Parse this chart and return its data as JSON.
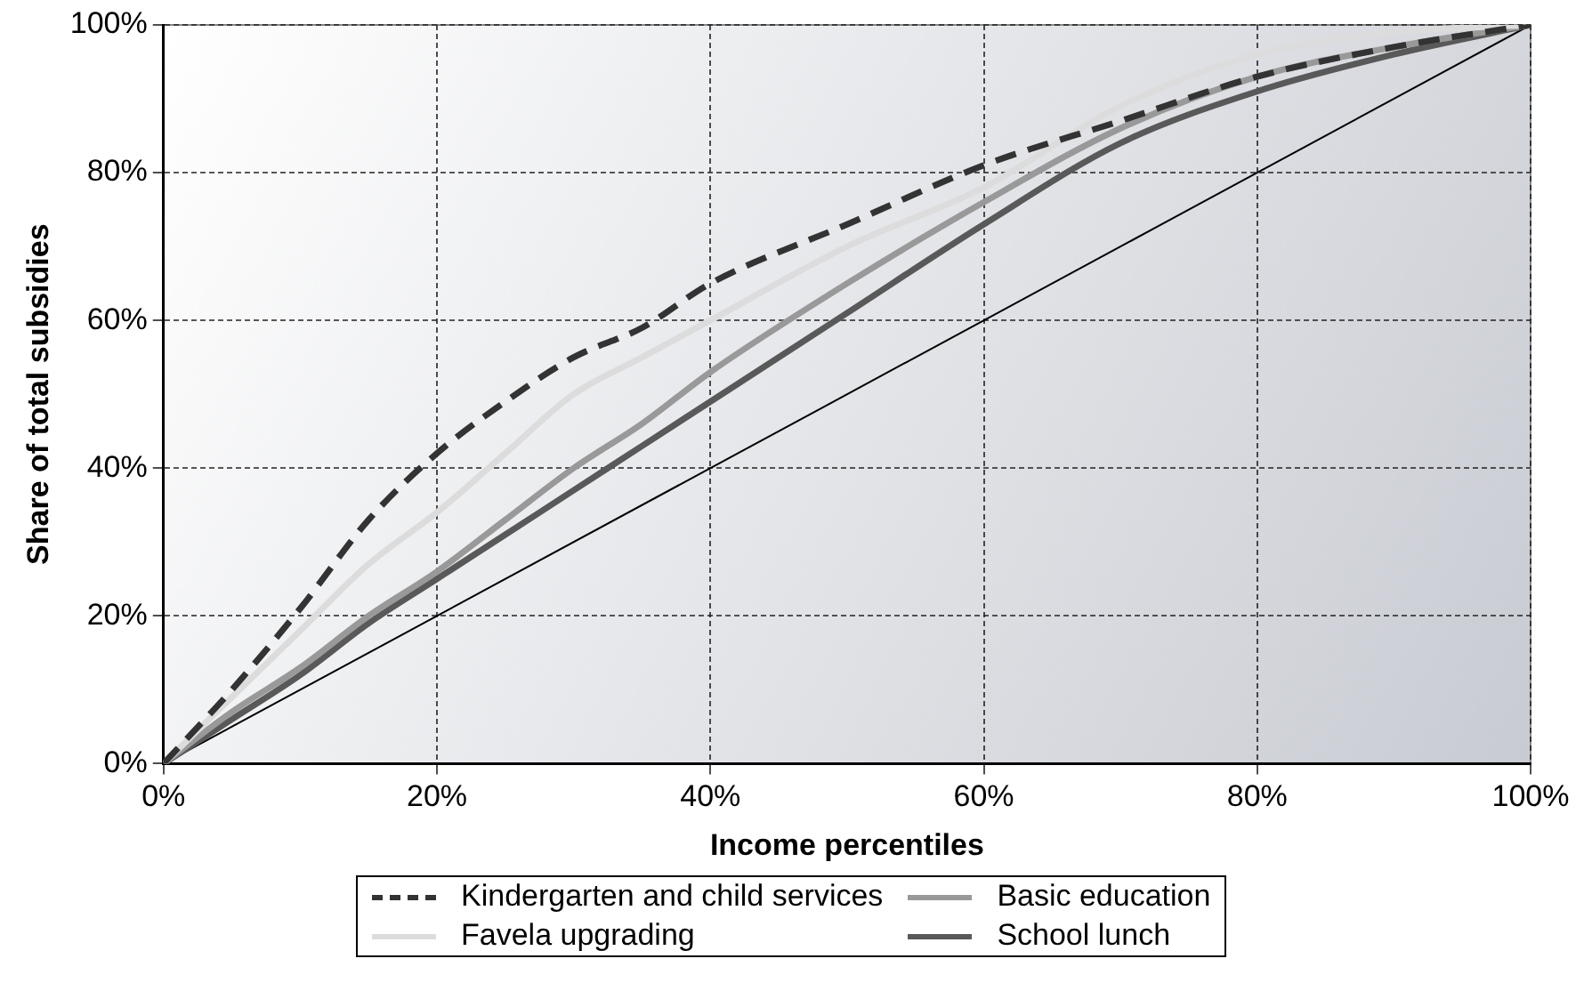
{
  "chart_data": {
    "type": "line",
    "xlabel": "Income percentiles",
    "ylabel": "Share of total subsidies",
    "x": [
      0,
      5,
      10,
      15,
      20,
      25,
      30,
      35,
      40,
      50,
      60,
      70,
      80,
      90,
      100
    ],
    "series": [
      {
        "name": "Kindergarten and child services",
        "color": "#333333",
        "line_style": "dashed",
        "values": [
          0,
          10,
          21,
          33,
          42,
          49,
          55,
          59,
          65,
          73,
          81,
          87,
          93,
          97,
          100
        ]
      },
      {
        "name": "Favela upgrading",
        "color": "#dcdcdc",
        "values": [
          0,
          9,
          18,
          27,
          34,
          42,
          50,
          55,
          60,
          70,
          78,
          89,
          96,
          99,
          100
        ]
      },
      {
        "name": "Basic education",
        "color": "#999999",
        "values": [
          0,
          7,
          13,
          20,
          26,
          33,
          40,
          46,
          53,
          65,
          76,
          86,
          93,
          97,
          100
        ]
      },
      {
        "name": "School lunch",
        "color": "#595959",
        "values": [
          0,
          6,
          12,
          19,
          25,
          31,
          37,
          43,
          49,
          61,
          73,
          84,
          91,
          96,
          100
        ]
      },
      {
        "color": "#000000",
        "x": [
          0,
          100
        ],
        "values": [
          0,
          100
        ]
      }
    ],
    "xlim": [
      0,
      100
    ],
    "ylim": [
      0,
      100
    ],
    "xticks": [
      {
        "value": 0,
        "label": "0%"
      },
      {
        "value": 20,
        "label": "20%"
      },
      {
        "value": 40,
        "label": "40%"
      },
      {
        "value": 60,
        "label": "60%"
      },
      {
        "value": 80,
        "label": "80%"
      },
      {
        "value": 100,
        "label": "100%"
      }
    ],
    "yticks": [
      {
        "value": 0,
        "label": "0%"
      },
      {
        "value": 20,
        "label": "20%"
      },
      {
        "value": 40,
        "label": "40%"
      },
      {
        "value": 60,
        "label": "60%"
      },
      {
        "value": 80,
        "label": "80%"
      },
      {
        "value": 100,
        "label": "100%"
      }
    ],
    "grid": true,
    "legend": "bottom",
    "marker": "none"
  }
}
